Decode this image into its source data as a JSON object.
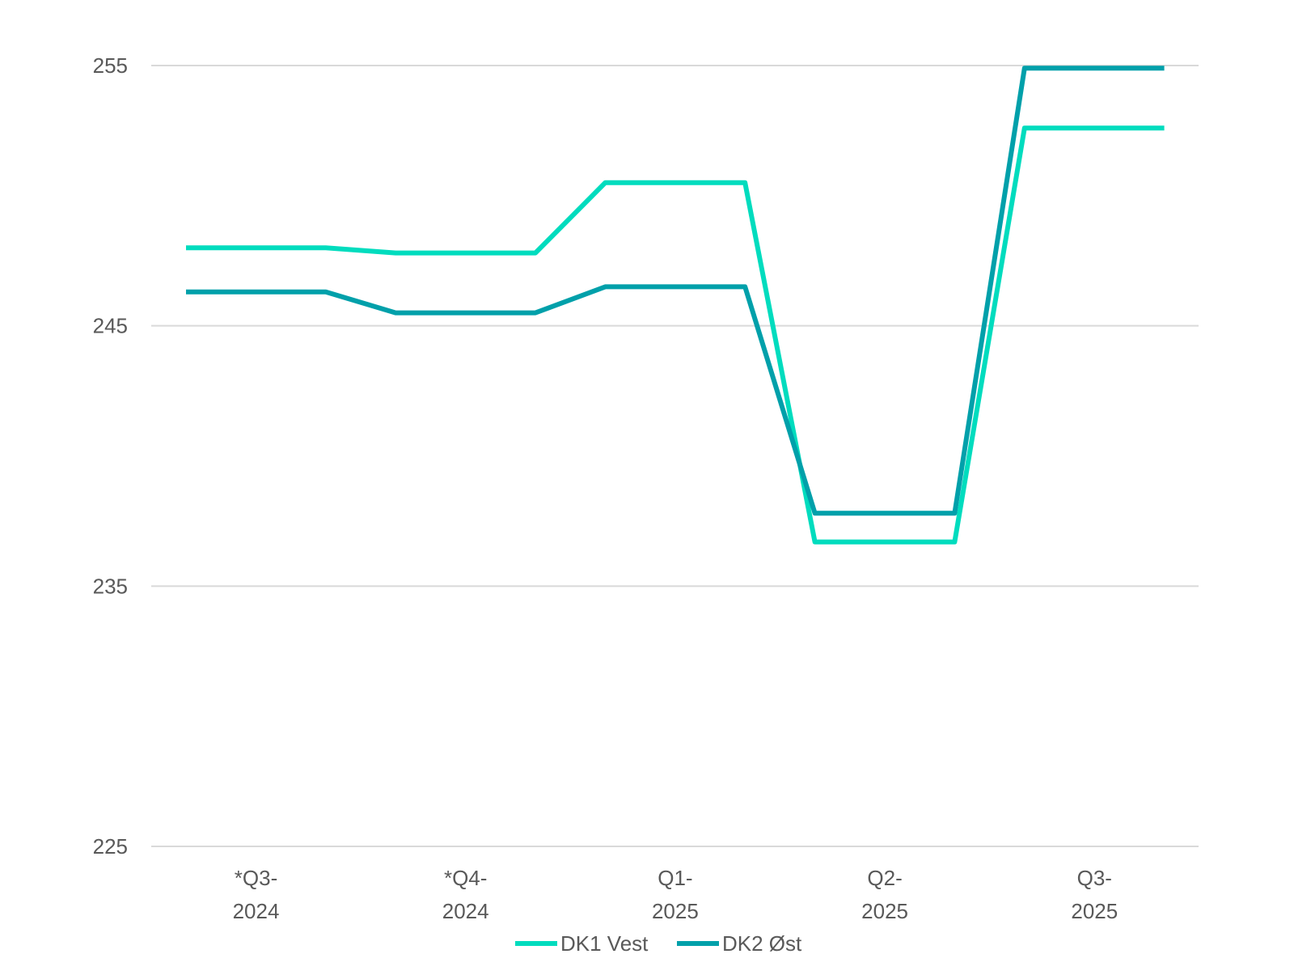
{
  "colors": {
    "dk1": "#00DCBE",
    "dk2": "#00A0AA",
    "grid": "#d9d9d9",
    "text": "#595959"
  },
  "chart_data": {
    "type": "line",
    "title": "",
    "xlabel": "",
    "ylabel": "",
    "ylim": [
      225,
      255
    ],
    "yticks": [
      "225",
      "235",
      "245",
      "255"
    ],
    "grid": true,
    "legend": "bottom",
    "categories": [
      [
        "*Q3-",
        "2024"
      ],
      [
        "*Q4-",
        "2024"
      ],
      [
        "Q1-",
        "2025"
      ],
      [
        "Q2-",
        "2025"
      ],
      [
        "Q3-",
        "2025"
      ]
    ],
    "x": [
      0,
      0.33,
      0.67,
      1,
      1.33,
      1.67,
      2,
      2.33,
      2.67,
      3,
      3.33,
      3.67,
      4,
      4.33,
      4.67
    ],
    "series": [
      {
        "name": "DK1 Vest",
        "color": "#00DCBE",
        "values": [
          248,
          248,
          248,
          247.8,
          247.8,
          247.8,
          250.5,
          250.5,
          250.5,
          236.7,
          236.7,
          236.7,
          252.6,
          252.6,
          252.6
        ]
      },
      {
        "name": "DK2 Øst",
        "color": "#00A0AA",
        "values": [
          246.3,
          246.3,
          246.3,
          245.5,
          245.5,
          245.5,
          246.5,
          246.5,
          246.5,
          237.8,
          237.8,
          237.8,
          254.9,
          254.9,
          254.9
        ]
      }
    ]
  }
}
